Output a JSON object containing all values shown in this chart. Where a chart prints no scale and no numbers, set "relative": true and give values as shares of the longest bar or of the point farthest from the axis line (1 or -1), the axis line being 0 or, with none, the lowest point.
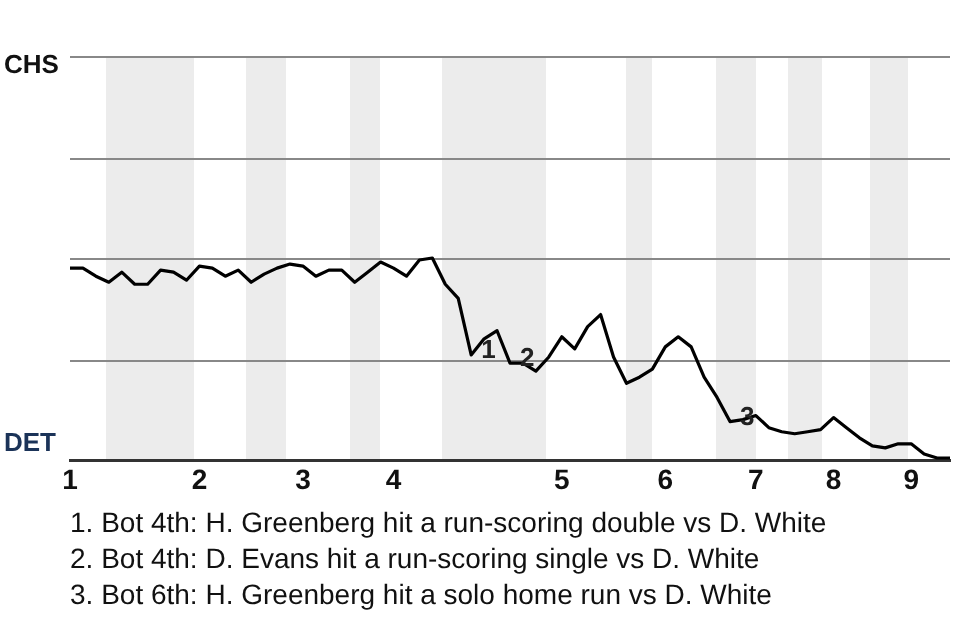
{
  "chart_data": {
    "type": "line",
    "relative": true,
    "categories": [
      "1",
      null,
      null,
      null,
      null,
      null,
      null,
      null,
      null,
      null,
      "2",
      null,
      null,
      null,
      null,
      null,
      null,
      null,
      "3",
      null,
      null,
      null,
      null,
      null,
      null,
      "4",
      null,
      null,
      null,
      null,
      null,
      null,
      null,
      null,
      null,
      null,
      null,
      null,
      "5",
      null,
      null,
      null,
      null,
      null,
      null,
      null,
      "6",
      null,
      null,
      null,
      null,
      null,
      null,
      "7",
      null,
      null,
      null,
      null,
      null,
      "8",
      null,
      null,
      null,
      null,
      null,
      "9",
      null,
      null,
      null
    ],
    "series": [
      {
        "color": "#000000",
        "values": [
          0.95,
          0.95,
          0.91,
          0.88,
          0.93,
          0.87,
          0.87,
          0.94,
          0.93,
          0.89,
          0.96,
          0.95,
          0.91,
          0.94,
          0.88,
          0.92,
          0.95,
          0.97,
          0.96,
          0.91,
          0.94,
          0.94,
          0.88,
          0.93,
          0.98,
          0.95,
          0.91,
          0.99,
          1,
          0.87,
          0.8,
          0.52,
          0.6,
          0.64,
          0.48,
          0.48,
          0.44,
          0.51,
          0.61,
          0.55,
          0.66,
          0.72,
          0.51,
          0.38,
          0.41,
          0.45,
          0.56,
          0.61,
          0.56,
          0.41,
          0.31,
          0.19,
          0.2,
          0.22,
          0.16,
          0.14,
          0.13,
          0.14,
          0.15,
          0.21,
          0.16,
          0.11,
          0.07,
          0.06,
          0.08,
          0.08,
          0.03,
          0.01,
          0.01
        ]
      }
    ],
    "ref_lines": [
      {
        "axis": "y",
        "value": 0.5,
        "color": "#888888"
      },
      {
        "axis": "y",
        "value": 1,
        "color": "#888888"
      },
      {
        "axis": "y",
        "value": 1.5,
        "color": "#888888"
      },
      {
        "axis": "y",
        "value": 2,
        "color": "#888888"
      }
    ],
    "marker": "none",
    "line_style": "solid",
    "annotations": [
      "CHS",
      "DET",
      {
        "text": "1",
        "y": 0.52
      },
      {
        "text": "2",
        "y": 0.48
      },
      {
        "text": "3",
        "y": 0.19
      },
      "1. Bot 4th: H. Greenberg hit a run-scoring double vs D. White",
      "2. Bot 4th: D. Evans hit a run-scoring single vs D. White",
      "3. Bot 6th: H. Greenberg hit a solo home run vs D. White"
    ]
  }
}
